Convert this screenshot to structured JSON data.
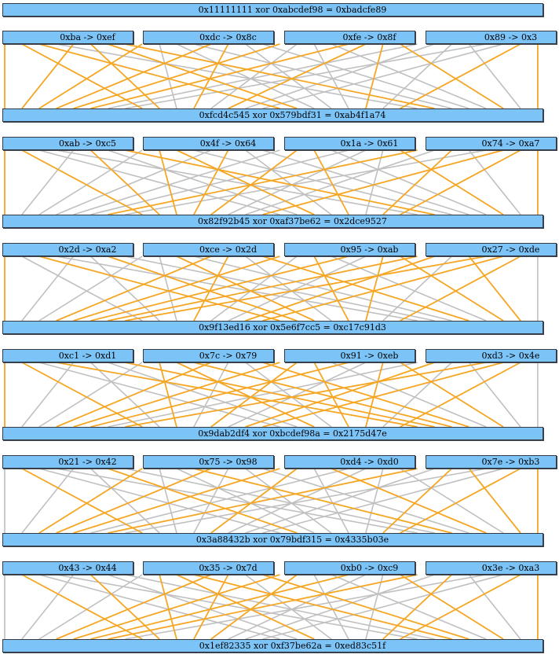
{
  "top": "0x11111111 xor 0xabcdef98 = 0xbadcfe89",
  "rounds": [
    {
      "sboxes": [
        "0xba -> 0xef",
        "0xdc -> 0x8c",
        "0xfe -> 0x8f",
        "0x89 -> 0x3"
      ],
      "result": "0xfcd4c545 xor 0x579bdf31 = 0xab4f1a74"
    },
    {
      "sboxes": [
        "0xab -> 0xc5",
        "0x4f -> 0x64",
        "0x1a -> 0x61",
        "0x74 -> 0xa7"
      ],
      "result": "0x82f92b45 xor 0xaf37be62 = 0x2dce9527"
    },
    {
      "sboxes": [
        "0x2d -> 0xa2",
        "0xce -> 0x2d",
        "0x95 -> 0xab",
        "0x27 -> 0xde"
      ],
      "result": "0x9f13ed16 xor 0x5e6f7cc5 = 0xc17c91d3"
    },
    {
      "sboxes": [
        "0xc1 -> 0xd1",
        "0x7c -> 0x79",
        "0x91 -> 0xeb",
        "0xd3 -> 0x4e"
      ],
      "result": "0x9dab2df4 xor 0xbcdef98a = 0x2175d47e"
    },
    {
      "sboxes": [
        "0x21 -> 0x42",
        "0x75 -> 0x98",
        "0xd4 -> 0xd0",
        "0x7e -> 0xb3"
      ],
      "result": "0x3a88432b xor 0x79bdf315 = 0x4335b03e"
    },
    {
      "sboxes": [
        "0x43 -> 0x44",
        "0x35 -> 0x7d",
        "0xb0 -> 0xc9",
        "0x3e -> 0xa3"
      ],
      "result": "0x1ef82335 xor 0xf37be62a = 0xed83c51f"
    }
  ],
  "colors": {
    "box": "#7cc4f8",
    "wire_on": "#f5a623",
    "wire_off": "#c0c0c0"
  }
}
